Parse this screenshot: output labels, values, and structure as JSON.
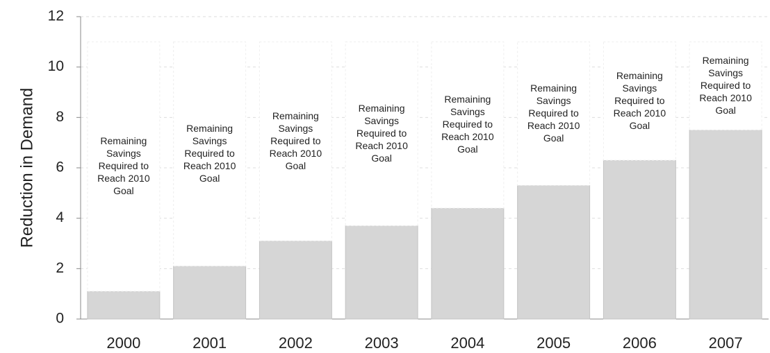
{
  "chart_data": {
    "type": "stacked_bar",
    "y_label": "Reduction in Demand",
    "categories": [
      "2000",
      "2001",
      "2002",
      "2003",
      "2004",
      "2005",
      "2006",
      "2007"
    ],
    "series": [
      {
        "color": "#d6d6d6",
        "values": [
          1.1,
          2.1,
          3.1,
          3.7,
          4.4,
          5.3,
          6.3,
          7.5
        ]
      },
      {
        "name": "Remaining Savings Required to Reach 2010 Goal",
        "color": "#ffffff",
        "values": [
          9.9,
          8.9,
          7.9,
          7.3,
          6.6,
          5.7,
          4.7,
          3.5
        ]
      }
    ],
    "ylim": [
      0,
      12
    ],
    "yticks": [
      0,
      2,
      4,
      6,
      8,
      10,
      12
    ],
    "grid": true
  }
}
